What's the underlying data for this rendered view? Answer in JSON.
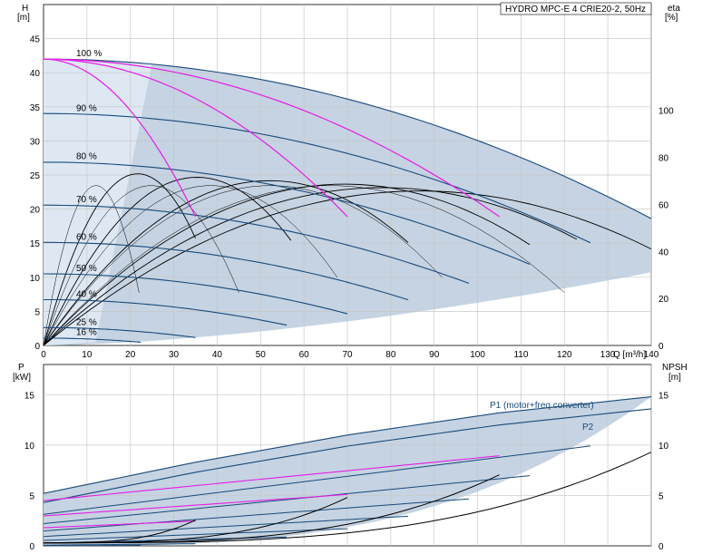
{
  "chart_data": [
    {
      "type": "line",
      "title": "HYDRO MPC-E 4 CRIE20-2, 50Hz",
      "x_label": "Q [m³/h]",
      "y_label_left": "H",
      "y_unit_left": "[m]",
      "y_label_right": "eta",
      "y_unit_right": "[%]",
      "xlim": [
        0,
        140
      ],
      "ylim": [
        0,
        50
      ],
      "y2lim": [
        0,
        145
      ],
      "x_ticks": [
        0,
        10,
        20,
        30,
        40,
        50,
        60,
        70,
        80,
        90,
        100,
        110,
        120,
        130,
        140
      ],
      "y_ticks": [
        0,
        5,
        10,
        15,
        20,
        25,
        30,
        35,
        40,
        45
      ],
      "y2_ticks": [
        0,
        20,
        40,
        60,
        80,
        100
      ],
      "grid": true,
      "speed_labels": [
        {
          "text": "100 %",
          "h": 42.0
        },
        {
          "text": "90 %",
          "h": 34.0
        },
        {
          "text": "80 %",
          "h": 26.9
        },
        {
          "text": "70 %",
          "h": 20.6
        },
        {
          "text": "60 %",
          "h": 15.1
        },
        {
          "text": "50 %",
          "h": 10.5
        },
        {
          "text": "40 %",
          "h": 6.7
        },
        {
          "text": "25 %",
          "h": 2.6
        },
        {
          "text": "16 %",
          "h": 1.1
        }
      ],
      "speed_curves_max_q": [
        140,
        126,
        112,
        98,
        84,
        70,
        56,
        35,
        22.4
      ],
      "speed_fractions": [
        1.0,
        0.9,
        0.8,
        0.7,
        0.6,
        0.5,
        0.4,
        0.25,
        0.16
      ],
      "shutoff_head_100": 42.0,
      "magenta_end_q": [
        35,
        70,
        105
      ],
      "efficiency_curves_end_q": [
        35,
        57,
        84,
        112,
        126,
        140
      ],
      "peak_efficiency": 73
    },
    {
      "type": "line",
      "y_label_left": "P",
      "y_unit_left": "[kW]",
      "y_label_right": "NPSH",
      "y_unit_right": "[m]",
      "xlim": [
        0,
        140
      ],
      "ylim": [
        0,
        18
      ],
      "y_ticks": [
        0,
        5,
        10,
        15
      ],
      "y2_ticks": [
        0,
        5,
        10,
        15
      ],
      "grid": true,
      "series": [
        {
          "name": "P1 (motor+freq.converter)",
          "x": [
            0,
            35,
            70,
            105,
            140
          ],
          "values": [
            5.2,
            8.3,
            11.0,
            13.2,
            14.8
          ]
        },
        {
          "name": "P2",
          "x": [
            0,
            35,
            70,
            105,
            140
          ],
          "values": [
            4.3,
            7.3,
            9.9,
            12.0,
            13.6
          ]
        }
      ],
      "npsh_curve_end_q": [
        35,
        70,
        105,
        140
      ]
    }
  ]
}
